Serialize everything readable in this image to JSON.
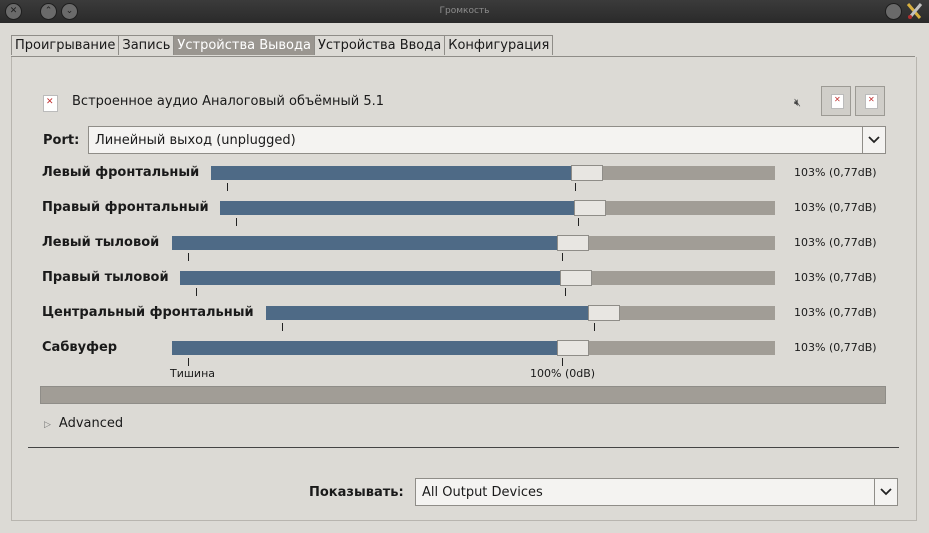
{
  "window": {
    "title": "Громкость"
  },
  "tabs": [
    {
      "label": "Проигрывание",
      "active": false
    },
    {
      "label": "Запись",
      "active": false
    },
    {
      "label": "Устройства Вывода",
      "active": true
    },
    {
      "label": "Устройства Ввода",
      "active": false
    },
    {
      "label": "Конфигурация",
      "active": false
    }
  ],
  "device": {
    "name": "Встроенное аудио Аналоговый объёмный 5.1"
  },
  "port": {
    "label": "Port:",
    "value": "Линейный выход (unplugged)"
  },
  "channels": [
    {
      "label": "Левый фронтальный",
      "value": "103% (0,77dB)",
      "level_percent": 103
    },
    {
      "label": "Правый фронтальный",
      "value": "103% (0,77dB)",
      "level_percent": 103
    },
    {
      "label": "Левый тыловой",
      "value": "103% (0,77dB)",
      "level_percent": 103
    },
    {
      "label": "Правый тыловой",
      "value": "103% (0,77dB)",
      "level_percent": 103
    },
    {
      "label": "Центральный фронтальный",
      "value": "103% (0,77dB)",
      "level_percent": 103
    },
    {
      "label": "Сабвуфер",
      "value": "103% (0,77dB)",
      "level_percent": 103
    }
  ],
  "scale_marks": {
    "silence": "Тишина",
    "normal": "100% (0dB)"
  },
  "advanced": {
    "label": "Advanced"
  },
  "show": {
    "label": "Показывать:",
    "value": "All Output Devices"
  },
  "colors": {
    "fill": "#4e6a86",
    "trough": "#a19d96",
    "active_tab": "#9a9690"
  }
}
